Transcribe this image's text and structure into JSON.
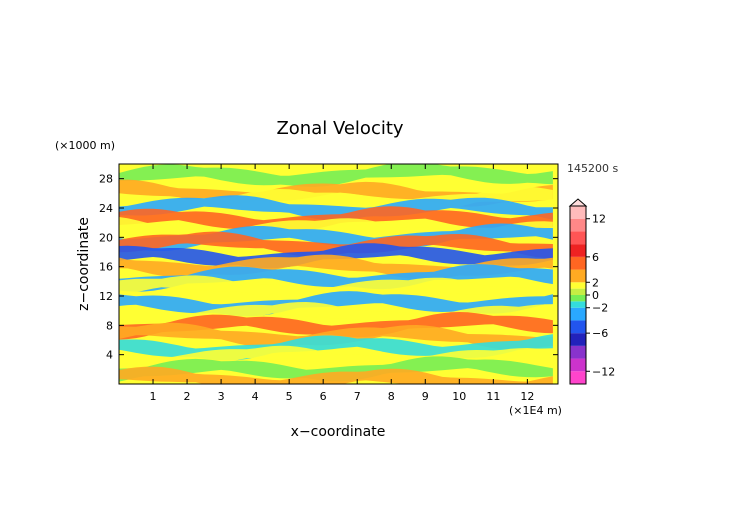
{
  "chart_data": {
    "type": "heatmap",
    "title": "Zonal Velocity",
    "xlabel": "x−coordinate",
    "ylabel": "z−coordinate",
    "x_unit": "(×1E4 m)",
    "y_unit": "(×1000 m)",
    "time_label": "145200 s",
    "xlim": [
      0,
      12.9
    ],
    "ylim": [
      0,
      30
    ],
    "x_ticks": [
      1,
      2,
      3,
      4,
      5,
      6,
      7,
      8,
      9,
      10,
      11,
      12
    ],
    "y_ticks": [
      4,
      8,
      12,
      16,
      20,
      24,
      28
    ],
    "grid": false,
    "colorbar": {
      "range": [
        -14,
        14
      ],
      "labeled_ticks": [
        -12,
        -6,
        -2,
        0,
        2,
        6,
        12
      ],
      "levels": [
        {
          "min": -14,
          "max": -12,
          "color": "#ff44cc"
        },
        {
          "min": -12,
          "max": -10,
          "color": "#cc33cc"
        },
        {
          "min": -10,
          "max": -8,
          "color": "#8833cc"
        },
        {
          "min": -8,
          "max": -6,
          "color": "#2222bb"
        },
        {
          "min": -6,
          "max": -4,
          "color": "#2255ee"
        },
        {
          "min": -4,
          "max": -2,
          "color": "#2aa8ff"
        },
        {
          "min": -2,
          "max": -1,
          "color": "#33dddd"
        },
        {
          "min": -1,
          "max": 0,
          "color": "#77ee55"
        },
        {
          "min": 0,
          "max": 1,
          "color": "#c6ee44"
        },
        {
          "min": 1,
          "max": 2,
          "color": "#ffff33"
        },
        {
          "min": 2,
          "max": 4,
          "color": "#ffaa22"
        },
        {
          "min": 4,
          "max": 6,
          "color": "#ff6622"
        },
        {
          "min": 6,
          "max": 8,
          "color": "#ee2222"
        },
        {
          "min": 8,
          "max": 10,
          "color": "#ff5555"
        },
        {
          "min": 10,
          "max": 12,
          "color": "#ff8888"
        },
        {
          "min": 12,
          "max": 14,
          "color": "#ffbbbb"
        }
      ]
    },
    "field_bands": [
      {
        "z": 28.5,
        "u": -0.5
      },
      {
        "z": 26.0,
        "u": 2.5
      },
      {
        "z": 25.0,
        "u": 1.0
      },
      {
        "z": 24.0,
        "u": -3.5
      },
      {
        "z": 22.5,
        "u": 5.0
      },
      {
        "z": 21.0,
        "u": 1.0
      },
      {
        "z": 20.0,
        "u": -4.0
      },
      {
        "z": 19.0,
        "u": 4.5
      },
      {
        "z": 17.5,
        "u": -5.5
      },
      {
        "z": 16.0,
        "u": 3.0
      },
      {
        "z": 14.5,
        "u": -3.0
      },
      {
        "z": 13.0,
        "u": 1.5
      },
      {
        "z": 11.0,
        "u": -2.5
      },
      {
        "z": 9.5,
        "u": 1.0
      },
      {
        "z": 8.0,
        "u": 4.0
      },
      {
        "z": 6.5,
        "u": 2.0
      },
      {
        "z": 5.0,
        "u": -1.5
      },
      {
        "z": 3.5,
        "u": 1.5
      },
      {
        "z": 2.0,
        "u": -1.0
      },
      {
        "z": 0.5,
        "u": 2.5
      }
    ]
  }
}
